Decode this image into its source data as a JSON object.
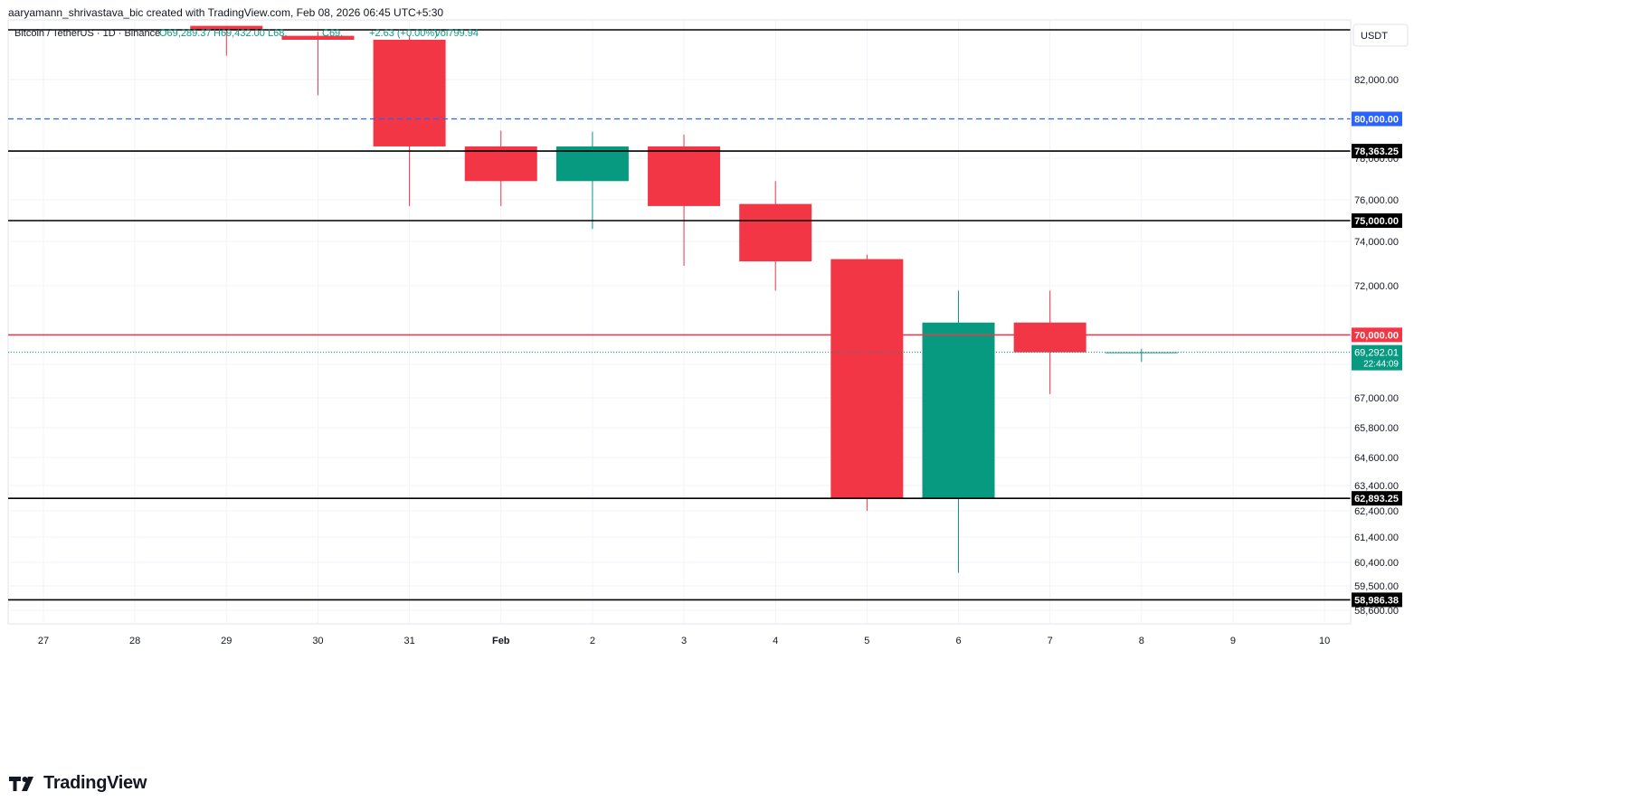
{
  "header": {
    "created_by": "aaryamann_shrivastava_bic created with TradingView.com, Feb 08, 2026 06:45 UTC+5:30"
  },
  "legend": {
    "symbol": "Bitcoin / TetherUS · 1D · Binance",
    "open": "O69,289.37",
    "high": "H69,432.00",
    "low": "L68,",
    "close": "C69,",
    "change": "+2.63 (+0.00%)",
    "volume": "Vol799.94"
  },
  "currency_label": "USDT",
  "footer": {
    "brand": "TradingView"
  },
  "colors": {
    "up": "#089981",
    "down": "#f23645",
    "blue_line": "#2962ff",
    "red_line": "#f23645",
    "black_line": "#000000",
    "grid": "#f0f3fa"
  },
  "chart_data": {
    "type": "candlestick",
    "x_labels": [
      "27",
      "28",
      "29",
      "30",
      "31",
      "Feb",
      "2",
      "3",
      "4",
      "5",
      "6",
      "7",
      "8",
      "9",
      "10"
    ],
    "candles": [
      {
        "day": "29",
        "open": 84700,
        "high": 84700,
        "low": 83200,
        "close": 84500
      },
      {
        "day": "30",
        "open": 84200,
        "high": 84400,
        "low": 81200,
        "close": 84000
      },
      {
        "day": "31",
        "open": 84000,
        "high": 84200,
        "low": 75700,
        "close": 78600
      },
      {
        "day": "Feb",
        "open": 78600,
        "high": 79400,
        "low": 75700,
        "close": 76900
      },
      {
        "day": "2",
        "open": 76900,
        "high": 79350,
        "low": 74600,
        "close": 78600
      },
      {
        "day": "3",
        "open": 78600,
        "high": 79200,
        "low": 72900,
        "close": 75700
      },
      {
        "day": "4",
        "open": 75800,
        "high": 76900,
        "low": 71800,
        "close": 73100
      },
      {
        "day": "5",
        "open": 73200,
        "high": 73400,
        "low": 62400,
        "close": 62900
      },
      {
        "day": "6",
        "open": 62900,
        "high": 71800,
        "low": 60000,
        "close": 70500
      },
      {
        "day": "7",
        "open": 70500,
        "high": 71800,
        "low": 67200,
        "close": 69290
      },
      {
        "day": "8",
        "open": 69289.37,
        "high": 69432,
        "low": 68900,
        "close": 69292.01
      }
    ],
    "y_ticks": [
      {
        "value": 82000,
        "label": "82,000.00"
      },
      {
        "value": 78000,
        "label": "78,000.00"
      },
      {
        "value": 76000,
        "label": "76,000.00"
      },
      {
        "value": 74000,
        "label": "74,000.00"
      },
      {
        "value": 72000,
        "label": "72,000.00"
      },
      {
        "value": 68800,
        "label": "68,800.00"
      },
      {
        "value": 67000,
        "label": "67,000.00"
      },
      {
        "value": 65800,
        "label": "65,800.00"
      },
      {
        "value": 64600,
        "label": "64,600.00"
      },
      {
        "value": 63400,
        "label": "63,400.00"
      },
      {
        "value": 62400,
        "label": "62,400.00"
      },
      {
        "value": 61400,
        "label": "61,400.00"
      },
      {
        "value": 60400,
        "label": "60,400.00"
      },
      {
        "value": 59500,
        "label": "59,500.00"
      },
      {
        "value": 58600,
        "label": "58,600.00"
      }
    ],
    "horizontal_lines": [
      {
        "value": 84500,
        "style": "solid",
        "color": "#000000"
      },
      {
        "value": 80000,
        "label": "80,000.00",
        "style": "dashed",
        "color": "#2962ff"
      },
      {
        "value": 78363.25,
        "label": "78,363.25",
        "style": "solid",
        "color": "#000000"
      },
      {
        "value": 75000,
        "label": "75,000.00",
        "style": "solid",
        "color": "#000000"
      },
      {
        "value": 70000,
        "label": "70,000.00",
        "style": "solid",
        "color": "#f23645"
      },
      {
        "value": 62893.25,
        "label": "62,893.25",
        "style": "solid",
        "color": "#000000"
      },
      {
        "value": 58986.38,
        "label": "58,986.38",
        "style": "solid",
        "color": "#000000"
      }
    ],
    "last_price": {
      "value": 69292.01,
      "label": "69,292.01",
      "countdown": "22:44:09"
    }
  }
}
